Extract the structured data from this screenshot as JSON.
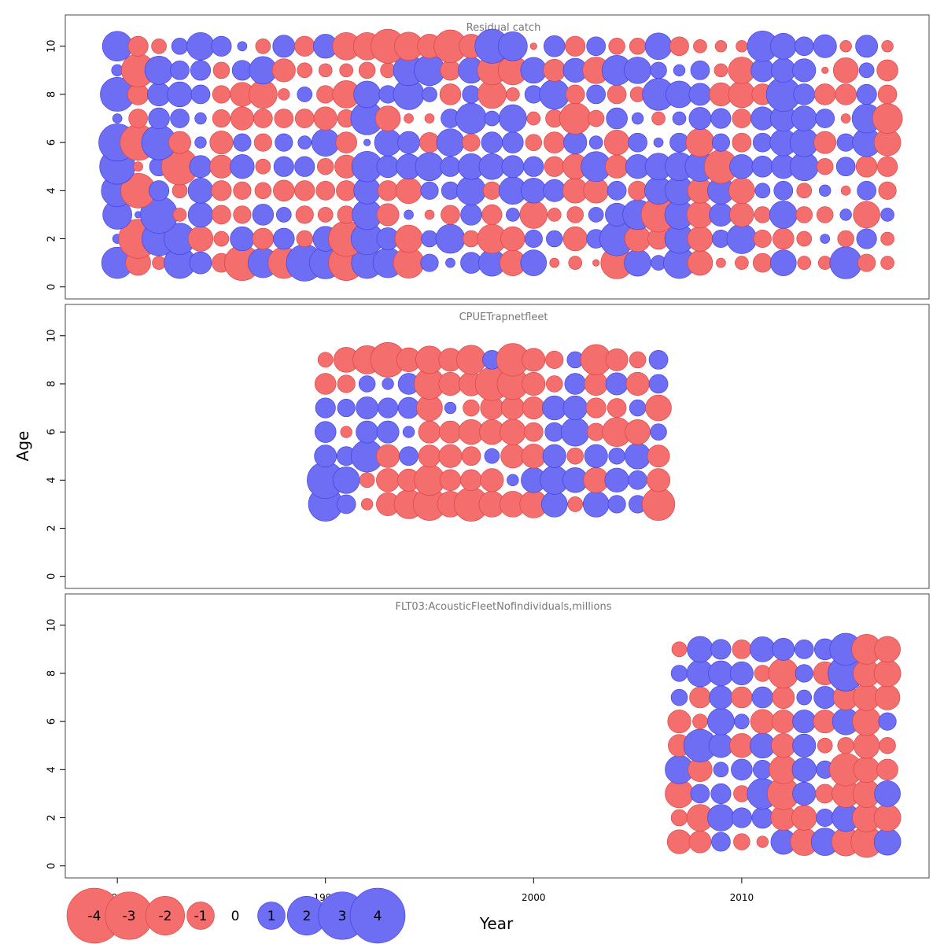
{
  "chart_data": {
    "type": "scatter",
    "subtype": "bubble",
    "xlabel": "Year",
    "ylabel": "Age",
    "xlim": [
      1977.5,
      2019
    ],
    "x_ticks": [
      1980,
      1990,
      2000,
      2010
    ],
    "x_tick_labels": [
      "1980",
      "1990",
      "2000",
      "2010"
    ],
    "ylim": [
      -0.5,
      11.3
    ],
    "y_ticks": [
      0,
      2,
      4,
      6,
      8,
      10
    ],
    "y_tick_labels": [
      "0",
      "2",
      "4",
      "6",
      "8",
      "10"
    ],
    "colors": {
      "positive": "#6e6ef5",
      "negative": "#f56e6e",
      "positive_stroke": "#3a3adf",
      "negative_stroke": "#d93c3c",
      "frame": "#4a4a4a",
      "panel_title": "#777777"
    },
    "legend": {
      "placement": "bottom-left",
      "values": [
        -4,
        -3,
        -2,
        -1,
        0,
        1,
        2,
        3,
        4
      ],
      "labels": [
        "-4",
        "-3",
        "-2",
        "-1",
        "0",
        "1",
        "2",
        "3",
        "4"
      ]
    },
    "panels": [
      {
        "title": "Residual catch",
        "years": [
          1980,
          1981,
          1982,
          1983,
          1984,
          1985,
          1986,
          1987,
          1988,
          1989,
          1990,
          1991,
          1992,
          1993,
          1994,
          1995,
          1996,
          1997,
          1998,
          1999,
          2000,
          2001,
          2002,
          2003,
          2004,
          2005,
          2006,
          2007,
          2008,
          2009,
          2010,
          2011,
          2012,
          2013,
          2014,
          2015,
          2016,
          2017
        ],
        "ages": [
          1,
          2,
          3,
          4,
          5,
          6,
          7,
          8,
          9,
          10
        ],
        "residuals": [
          [
            2.2,
            -1.4,
            -0.4,
            2.2,
            1.1,
            -0.8,
            -2.8,
            2.0,
            -2.2,
            3.0,
            2.3,
            -2.8,
            2.2,
            2.0,
            -2.1,
            0.7,
            0.2,
            1.0,
            1.6,
            -1.5,
            1.5,
            -0.2,
            -0.4,
            -0.1,
            -2.3,
            1.6,
            0.5,
            2.2,
            -1.4,
            -0.2,
            -0.4,
            -0.8,
            1.5,
            -0.4,
            -0.4,
            2.3,
            -0.7,
            -0.4
          ],
          [
            0.2,
            -3.4,
            2.6,
            2.2,
            -1.4,
            -0.5,
            1.3,
            -1.0,
            1.0,
            -0.6,
            1.4,
            -2.8,
            2.3,
            1.1,
            -1.7,
            0.6,
            1.9,
            -0.6,
            -1.9,
            -1.3,
            0.7,
            0.6,
            -1.3,
            0.8,
            2.6,
            -1.5,
            -1.0,
            1.9,
            -1.4,
            0.7,
            2.0,
            -0.7,
            -1.0,
            -0.5,
            0.2,
            -0.6,
            0.9,
            -0.4
          ],
          [
            1.9,
            0.1,
            3.1,
            -0.4,
            1.4,
            -0.8,
            -0.7,
            1.0,
            0.5,
            -0.7,
            -0.5,
            -0.7,
            2.0,
            -1.1,
            0.2,
            -0.2,
            -0.8,
            1.0,
            -0.9,
            0.4,
            -1.7,
            -0.4,
            -0.6,
            0.5,
            1.2,
            2.0,
            -2.7,
            1.9,
            -1.6,
            1.2,
            -1.3,
            -0.6,
            1.7,
            -0.6,
            -0.6,
            0.3,
            -1.6,
            0.4
          ],
          [
            2.3,
            -2.7,
            0.9,
            -0.5,
            1.4,
            -0.9,
            -0.7,
            -0.6,
            -1.0,
            -0.9,
            -0.8,
            -0.9,
            1.6,
            -0.9,
            -1.5,
            0.7,
            0.7,
            1.9,
            -0.7,
            1.7,
            1.4,
            1.1,
            -1.4,
            -1.4,
            0.8,
            -0.8,
            1.7,
            1.8,
            -1.4,
            1.6,
            -1.5,
            0.5,
            0.8,
            -0.5,
            0.3,
            -0.2,
            0.8,
            -0.7
          ],
          [
            2.8,
            -0.2,
            0.8,
            -3.0,
            1.1,
            -1.2,
            1.3,
            -0.5,
            0.9,
            0.9,
            -0.6,
            -1.2,
            2.1,
            1.1,
            1.4,
            1.8,
            0.9,
            1.5,
            1.5,
            1.1,
            0.9,
            -0.9,
            -1.4,
            2.0,
            -1.2,
            1.3,
            1.6,
            1.8,
            2.0,
            -2.5,
            1.3,
            1.0,
            1.3,
            1.8,
            -0.6,
            0.8,
            -1.0,
            -0.9
          ],
          [
            3.1,
            -2.9,
            2.7,
            -1.1,
            0.3,
            -1.2,
            0.7,
            -0.7,
            0.7,
            0.4,
            1.7,
            -1.0,
            0.1,
            1.6,
            1.1,
            -0.9,
            1.7,
            -0.7,
            1.0,
            1.0,
            -0.6,
            -1.0,
            1.2,
            0.4,
            -1.4,
            0.8,
            0.2,
            0.8,
            -1.8,
            0.7,
            -0.8,
            0.8,
            1.6,
            1.8,
            -1.1,
            0.7,
            1.8,
            -1.6
          ],
          [
            0.2,
            -0.8,
            1.0,
            0.8,
            0.3,
            -0.7,
            -1.2,
            -0.8,
            -0.8,
            -0.8,
            -1.2,
            -0.7,
            2.4,
            -1.4,
            -0.2,
            -0.2,
            0.8,
            2.1,
            0.5,
            1.7,
            -0.4,
            -0.7,
            -2.2,
            -0.6,
            1.0,
            0.3,
            -0.4,
            0.4,
            1.1,
            0.9,
            -0.8,
            1.2,
            1.5,
            1.4,
            0.8,
            -0.2,
            1.9,
            -2.0
          ],
          [
            2.6,
            -1.0,
            1.2,
            1.4,
            0.8,
            -0.7,
            -1.3,
            -1.8,
            -0.3,
            0.5,
            -0.7,
            -1.7,
            1.6,
            0.7,
            2.1,
            0.5,
            -1.0,
            0.7,
            -1.8,
            -0.4,
            0.7,
            2.0,
            -0.8,
            0.8,
            -0.8,
            -0.5,
            2.3,
            1.6,
            1.1,
            -1.2,
            -1.6,
            -1.0,
            2.6,
            1.0,
            -1.0,
            -1.0,
            0.9,
            -0.8
          ],
          [
            0.3,
            -2.5,
            1.8,
            0.8,
            0.9,
            -0.6,
            0.9,
            1.7,
            -1.2,
            -0.5,
            -0.4,
            -0.4,
            -0.6,
            -0.5,
            2.1,
            2.1,
            -0.9,
            1.5,
            -1.9,
            -1.9,
            1.5,
            -1.1,
            1.3,
            -1.6,
            2.0,
            1.6,
            0.6,
            0.3,
            0.8,
            -0.4,
            -1.6,
            1.2,
            1.3,
            1.2,
            -0.1,
            -1.4,
            0.5,
            -1.0
          ],
          [
            2.0,
            -0.9,
            -0.5,
            0.6,
            1.7,
            0.9,
            0.2,
            -0.5,
            1.1,
            -0.9,
            1.3,
            -1.7,
            -1.7,
            -2.6,
            -1.8,
            -1.3,
            -2.4,
            -1.3,
            2.6,
            1.9,
            -0.1,
            1.0,
            -0.9,
            0.8,
            -0.6,
            -0.6,
            1.6,
            -0.8,
            -0.4,
            -0.3,
            -0.3,
            2.1,
            1.5,
            0.8,
            1.2,
            -0.3,
            1.1,
            -0.3
          ]
        ]
      },
      {
        "title": "CPUETrapnetfleet",
        "years": [
          1990,
          1991,
          1992,
          1993,
          1994,
          1995,
          1996,
          1997,
          1998,
          1999,
          2000,
          2001,
          2002,
          2003,
          2004,
          2005,
          2006
        ],
        "ages": [
          3,
          4,
          5,
          6,
          7,
          8,
          9
        ],
        "residuals": [
          [
            2.6,
            0.8,
            -0.3,
            -1.2,
            -1.9,
            -2.4,
            -1.5,
            -2.6,
            -1.5,
            -1.5,
            -1.7,
            1.5,
            -0.5,
            1.5,
            0.7,
            0.7,
            -2.4
          ],
          [
            3.0,
            1.6,
            -0.5,
            -1.2,
            -1.1,
            -2.1,
            -1.0,
            -1.0,
            -1.2,
            0.3,
            1.4,
            1.8,
            1.4,
            -1.4,
            1.3,
            0.8,
            -1.2
          ],
          [
            1.1,
            0.8,
            2.3,
            -1.2,
            0.8,
            -1.1,
            -1.2,
            -0.8,
            0.5,
            -1.3,
            -1.3,
            1.2,
            -0.6,
            1.2,
            0.6,
            1.5,
            -1.1
          ],
          [
            1.0,
            -0.3,
            1.1,
            1.1,
            0.3,
            -1.1,
            -1.1,
            -1.4,
            -1.4,
            -1.5,
            -0.8,
            0.8,
            1.8,
            -0.7,
            -1.9,
            -1.4,
            0.6
          ],
          [
            0.9,
            0.7,
            1.1,
            0.9,
            1.0,
            -1.5,
            0.3,
            -0.6,
            -1.2,
            -1.2,
            -1.1,
            1.3,
            1.3,
            -0.9,
            -0.8,
            0.6,
            -1.5
          ],
          [
            -1.0,
            -0.7,
            0.6,
            0.3,
            1.0,
            -2.1,
            -1.2,
            -1.3,
            -2.5,
            -2.2,
            -1.2,
            -0.6,
            1.0,
            -1.2,
            1.1,
            -1.2,
            0.8
          ],
          [
            -0.5,
            -1.4,
            -1.8,
            -2.7,
            -1.3,
            -1.7,
            -1.2,
            -1.9,
            0.8,
            -2.4,
            -1.2,
            -0.7,
            0.6,
            -2.1,
            -1.1,
            -0.6,
            0.8
          ]
        ]
      },
      {
        "title": "FLT03:AcousticFleetNofindividuals,millions",
        "years": [
          2007,
          2008,
          2009,
          2010,
          2011,
          2012,
          2013,
          2014,
          2015,
          2016,
          2017
        ],
        "ages": [
          1,
          2,
          3,
          4,
          5,
          6,
          7,
          8,
          9
        ],
        "residuals": [
          [
            -1.3,
            -1.1,
            0.8,
            -0.6,
            -0.3,
            1.4,
            -1.7,
            1.7,
            -1.8,
            -2.2,
            1.6
          ],
          [
            -0.6,
            -1.6,
            1.6,
            0.9,
            1.0,
            -1.4,
            -1.4,
            0.7,
            1.7,
            -1.8,
            -1.6
          ],
          [
            -1.8,
            0.8,
            0.9,
            -0.6,
            2.1,
            -2.3,
            1.2,
            -0.8,
            -1.7,
            -1.7,
            1.5
          ],
          [
            1.8,
            -1.3,
            0.5,
            1.0,
            0.8,
            -1.8,
            1.3,
            0.7,
            -2.4,
            -1.5,
            -1.0
          ],
          [
            -1.1,
            2.4,
            1.3,
            -1.3,
            1.4,
            -1.3,
            1.2,
            -0.5,
            -0.6,
            -1.5,
            -0.6
          ],
          [
            -1.2,
            -0.5,
            1.6,
            0.5,
            -1.3,
            -1.2,
            1.2,
            -1.2,
            1.6,
            -1.8,
            0.7
          ],
          [
            0.6,
            -1.0,
            1.2,
            -1.0,
            1.0,
            -1.1,
            0.5,
            1.1,
            -1.4,
            -1.6,
            -1.4
          ],
          [
            0.6,
            1.6,
            1.4,
            1.2,
            -0.6,
            -2.0,
            0.7,
            -1.2,
            2.8,
            -1.6,
            -1.6
          ],
          [
            -0.5,
            1.5,
            0.9,
            -0.8,
            1.4,
            1.1,
            0.8,
            1.0,
            2.3,
            -2.0,
            -1.5
          ]
        ]
      }
    ]
  }
}
